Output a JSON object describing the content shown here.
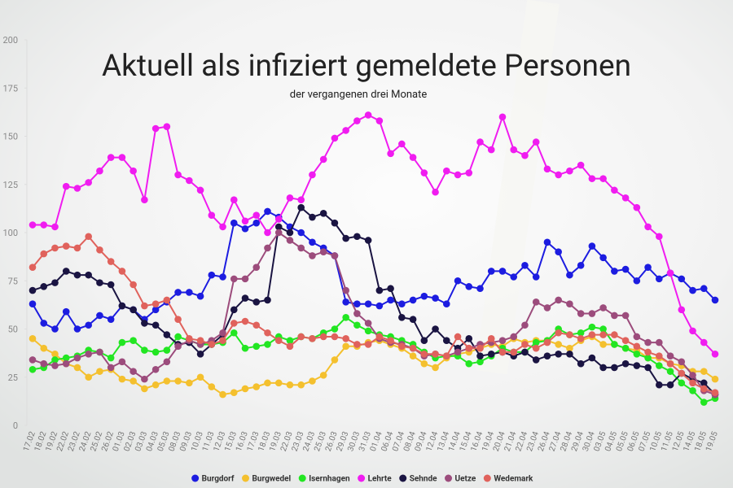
{
  "chart_data": {
    "type": "line",
    "title": "Aktuell als infiziert gemeldete Personen",
    "subtitle": "der vergangenen drei Monate",
    "categories": [
      "17.02",
      "18.02",
      "19.02",
      "22.02",
      "23.02",
      "24.02",
      "25.02",
      "26.02",
      "01.03",
      "02.03",
      "03.03",
      "04.03",
      "05.03",
      "08.03",
      "09.03",
      "10.03",
      "11.03",
      "12.03",
      "15.03",
      "16.03",
      "17.03",
      "18.03",
      "19.03",
      "22.03",
      "23.03",
      "24.03",
      "25.03",
      "26.03",
      "29.03",
      "30.03",
      "31.03",
      "01.04",
      "06.04",
      "07.04",
      "08.04",
      "09.04",
      "12.04",
      "13.04",
      "14.04",
      "15.04",
      "16.04",
      "19.04",
      "20.04",
      "21.04",
      "22.04",
      "23.04",
      "26.04",
      "27.04",
      "28.04",
      "29.04",
      "30.04",
      "03.05",
      "04.05",
      "05.05",
      "06.05",
      "07.05",
      "10.05",
      "11.05",
      "12.05",
      "14.05",
      "18.05",
      "19.05"
    ],
    "series": [
      {
        "name": "Burgdorf",
        "color": "#1c1ce0",
        "values": [
          63,
          53,
          50,
          59,
          50,
          52,
          57,
          55,
          62,
          60,
          55,
          60,
          64,
          69,
          69,
          67,
          78,
          77,
          105,
          102,
          105,
          111,
          108,
          103,
          100,
          95,
          92,
          88,
          64,
          63,
          63,
          62,
          65,
          63,
          65,
          67,
          66,
          63,
          75,
          72,
          71,
          80,
          80,
          77,
          83,
          77,
          95,
          90,
          78,
          83,
          93,
          87,
          80,
          81,
          75,
          82,
          76,
          79,
          76,
          70,
          71,
          65
        ]
      },
      {
        "name": "Burgwedel",
        "color": "#f4c02e",
        "values": [
          45,
          40,
          37,
          32,
          30,
          25,
          28,
          29,
          24,
          23,
          19,
          21,
          23,
          23,
          22,
          25,
          20,
          16,
          17,
          19,
          20,
          22,
          22,
          21,
          21,
          23,
          26,
          34,
          41,
          41,
          43,
          44,
          42,
          40,
          36,
          32,
          30,
          35,
          37,
          38,
          40,
          42,
          41,
          45,
          43,
          44,
          44,
          42,
          40,
          44,
          46,
          42,
          42,
          40,
          39,
          35,
          35,
          32,
          31,
          28,
          28,
          24
        ]
      },
      {
        "name": "Isernhagen",
        "color": "#22e622",
        "values": [
          29,
          30,
          34,
          35,
          36,
          39,
          38,
          35,
          43,
          44,
          39,
          38,
          39,
          46,
          44,
          42,
          42,
          43,
          48,
          40,
          41,
          42,
          46,
          44,
          46,
          45,
          48,
          50,
          56,
          52,
          49,
          47,
          46,
          44,
          42,
          38,
          35,
          36,
          36,
          32,
          33,
          36,
          40,
          38,
          38,
          43,
          44,
          50,
          47,
          48,
          51,
          50,
          42,
          40,
          37,
          35,
          31,
          28,
          22,
          18,
          12,
          14
        ]
      },
      {
        "name": "Lehrte",
        "color": "#f01cf0",
        "values": [
          104,
          104,
          103,
          124,
          123,
          126,
          132,
          139,
          139,
          132,
          117,
          154,
          155,
          130,
          127,
          122,
          109,
          103,
          117,
          106,
          109,
          100,
          107,
          118,
          117,
          130,
          138,
          149,
          153,
          158,
          161,
          158,
          141,
          146,
          139,
          131,
          121,
          132,
          130,
          131,
          147,
          143,
          160,
          143,
          140,
          147,
          133,
          130,
          132,
          135,
          128,
          128,
          122,
          118,
          113,
          103,
          98,
          79,
          60,
          49,
          43,
          37
        ]
      },
      {
        "name": "Sehnde",
        "color": "#1a1442",
        "values": [
          70,
          72,
          74,
          80,
          78,
          78,
          74,
          73,
          62,
          60,
          53,
          52,
          47,
          42,
          43,
          37,
          42,
          47,
          60,
          66,
          64,
          65,
          103,
          100,
          113,
          108,
          110,
          105,
          97,
          98,
          96,
          70,
          71,
          56,
          55,
          44,
          50,
          44,
          40,
          45,
          36,
          37,
          38,
          36,
          38,
          34,
          36,
          37,
          37,
          32,
          35,
          30,
          30,
          32,
          31,
          30,
          21,
          21,
          27,
          24,
          22,
          16
        ]
      },
      {
        "name": "Uetze",
        "color": "#9c4c7c",
        "values": [
          34,
          32,
          31,
          32,
          35,
          37,
          38,
          30,
          33,
          28,
          24,
          29,
          33,
          41,
          44,
          42,
          44,
          48,
          76,
          76,
          82,
          92,
          100,
          96,
          92,
          88,
          90,
          88,
          70,
          58,
          53,
          45,
          43,
          42,
          40,
          36,
          37,
          36,
          38,
          40,
          42,
          43,
          44,
          46,
          52,
          64,
          61,
          65,
          63,
          58,
          58,
          61,
          57,
          57,
          46,
          43,
          43,
          36,
          33,
          26,
          18,
          16
        ]
      },
      {
        "name": "Wedemark",
        "color": "#e0625c",
        "values": [
          82,
          89,
          92,
          93,
          92,
          98,
          91,
          85,
          80,
          73,
          62,
          63,
          65,
          55,
          45,
          44,
          42,
          44,
          53,
          54,
          52,
          48,
          44,
          41,
          46,
          45,
          46,
          46,
          45,
          42,
          42,
          46,
          44,
          41,
          40,
          37,
          37,
          36,
          46,
          40,
          40,
          45,
          38,
          38,
          42,
          40,
          43,
          48,
          47,
          45,
          47,
          47,
          47,
          44,
          41,
          38,
          36,
          32,
          27,
          22,
          19,
          17
        ]
      }
    ],
    "ylim": [
      0,
      200
    ],
    "yticks": [
      0,
      25,
      50,
      75,
      100,
      125,
      150,
      175,
      200
    ],
    "grid": false,
    "legend": "bottom"
  }
}
